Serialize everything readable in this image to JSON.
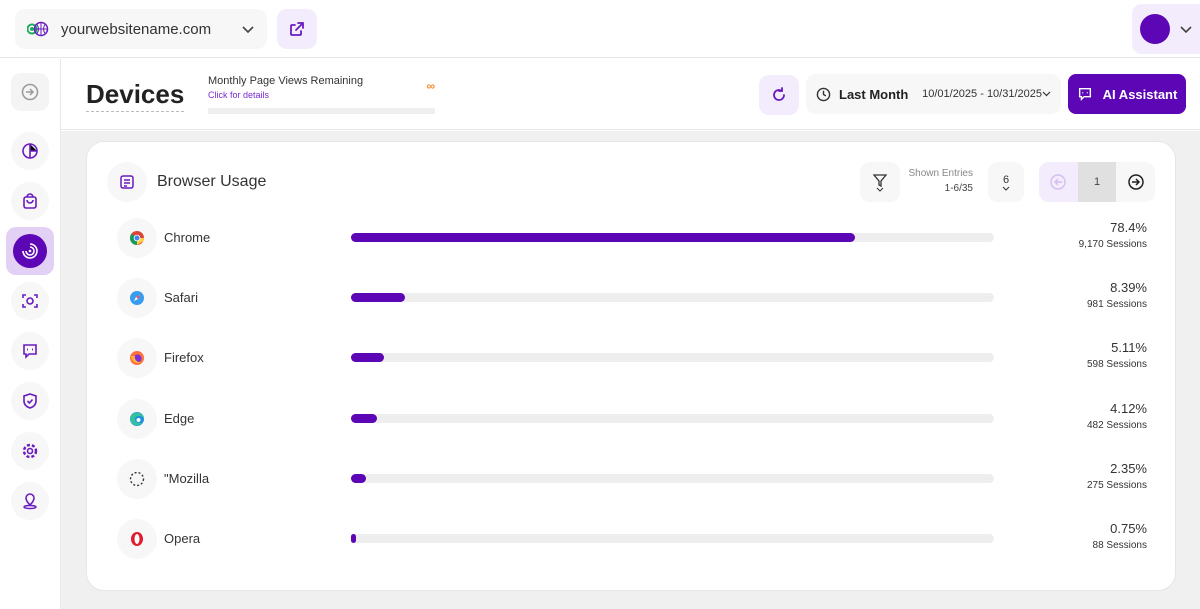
{
  "topbar": {
    "site": "yourwebsitename.com",
    "icons": [
      "globe-icon",
      "chevron-down-icon",
      "external-link-icon",
      "avatar"
    ]
  },
  "sidebar": {
    "items": [
      "collapse",
      "dashboard",
      "ecommerce",
      "devices",
      "visitors",
      "chat",
      "privacy",
      "settings",
      "location"
    ],
    "active": "devices"
  },
  "header": {
    "title": "Devices",
    "page_views_label": "Monthly Page Views Remaining",
    "page_views_link": "Click for details",
    "page_views_value": "∞",
    "date_preset": "Last Month",
    "date_range": "10/01/2025 - 10/31/2025",
    "ai_label": "AI Assistant"
  },
  "card": {
    "title": "Browser Usage",
    "shown_label": "Shown Entries",
    "shown_value": "1-6/35",
    "per_page": "6",
    "page": "1",
    "rows": [
      {
        "name": "Chrome",
        "pct": "78.4%",
        "value": 78.4,
        "sessions": "9,170 Sessions"
      },
      {
        "name": "Safari",
        "pct": "8.39%",
        "value": 8.39,
        "sessions": "981 Sessions"
      },
      {
        "name": "Firefox",
        "pct": "5.11%",
        "value": 5.11,
        "sessions": "598 Sessions"
      },
      {
        "name": "Edge",
        "pct": "4.12%",
        "value": 4.12,
        "sessions": "482 Sessions"
      },
      {
        "name": "\"Mozilla",
        "pct": "2.35%",
        "value": 2.35,
        "sessions": "275 Sessions"
      },
      {
        "name": "Opera",
        "pct": "0.75%",
        "value": 0.75,
        "sessions": "88 Sessions"
      }
    ]
  },
  "colors": {
    "accent": "#5c06b5",
    "track": "#eeeeee",
    "infinity": "#f08a2b"
  }
}
